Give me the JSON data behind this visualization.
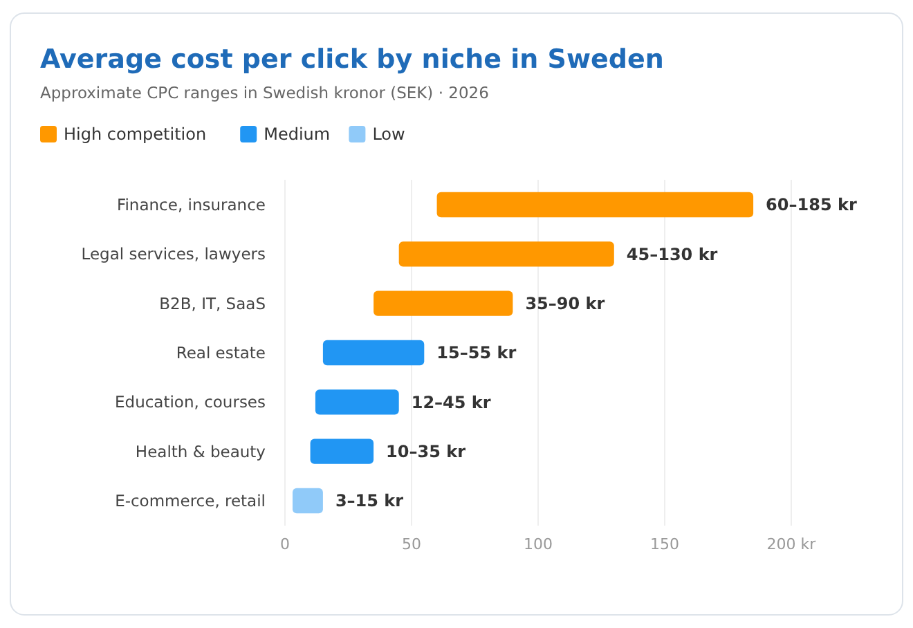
{
  "chart_data": {
    "type": "bar",
    "orientation": "horizontal",
    "title": "Average cost per click by niche in Sweden",
    "subtitle": "Approximate CPC ranges in Swedish kronor (SEK) · 2026",
    "categories": [
      "Finance, insurance",
      "Legal services, lawyers",
      "B2B, IT, SaaS",
      "Real estate",
      "Education, courses",
      "Health & beauty",
      "E-commerce, retail"
    ],
    "series": [
      {
        "name": "High competition",
        "color": "#ff9800",
        "base": [
          60,
          45,
          35,
          null,
          null,
          null,
          null
        ],
        "values": [
          125,
          85,
          55,
          null,
          null,
          null,
          null
        ],
        "value_labels": [
          "60–185 kr",
          "45–130 kr",
          "35–90 kr",
          null,
          null,
          null,
          null
        ]
      },
      {
        "name": "Medium",
        "color": "#2196f3",
        "base": [
          null,
          null,
          null,
          15,
          12,
          10,
          null
        ],
        "values": [
          null,
          null,
          null,
          40,
          33,
          25,
          null
        ],
        "value_labels": [
          null,
          null,
          null,
          "15–55 kr",
          "12–45 kr",
          "10–35 kr",
          null
        ]
      },
      {
        "name": "Low",
        "color": "#90caf9",
        "base": [
          null,
          null,
          null,
          null,
          null,
          null,
          3
        ],
        "values": [
          null,
          null,
          null,
          null,
          null,
          null,
          12
        ],
        "value_labels": [
          null,
          null,
          null,
          null,
          null,
          null,
          "3–15 kr"
        ]
      }
    ],
    "xlim": [
      0,
      200
    ],
    "xticks": [
      0,
      50,
      100,
      150,
      {
        "value": 200,
        "label": "200 kr"
      }
    ],
    "grid": "x",
    "legend": "top left"
  }
}
